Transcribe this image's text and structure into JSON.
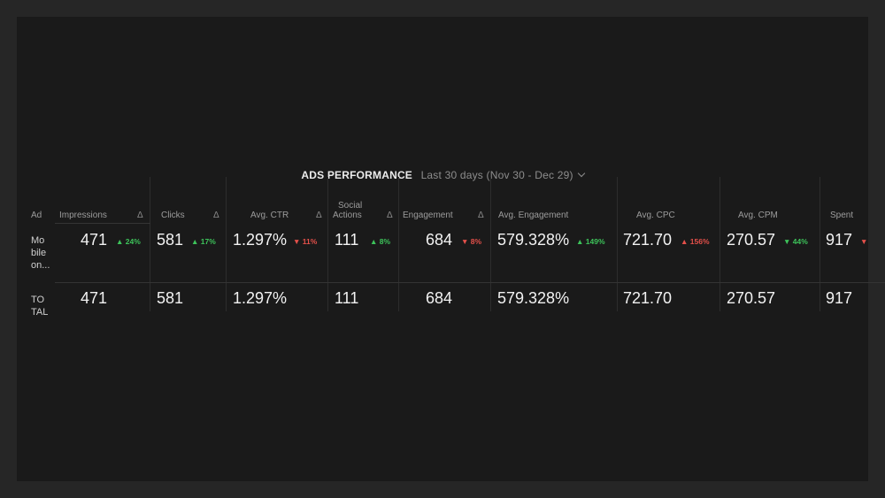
{
  "widget": {
    "title": "ADS PERFORMANCE",
    "date_range": "Last 30 days (Nov 30 - Dec 29)"
  },
  "columns": {
    "ad": "Ad",
    "impressions": "Impressions",
    "clicks": "Clicks",
    "avg_ctr": "Avg. CTR",
    "social_actions_1": "Social",
    "social_actions_2": "Actions",
    "engagement": "Engagement",
    "avg_engagement": "Avg. Engagement",
    "avg_cpc": "Avg. CPC",
    "avg_cpm": "Avg. CPM",
    "spent": "Spent",
    "delta": "Δ"
  },
  "rows": [
    {
      "ad_line1": "Mo",
      "ad_line2": "bile",
      "ad_line3": "on...",
      "impressions": "471",
      "impressions_chg": "▲ 24%",
      "clicks": "581",
      "clicks_chg": "▲ 17%",
      "avg_ctr": "1.297%",
      "avg_ctr_chg": "▼ 11%",
      "social_actions": "111",
      "social_actions_chg": "▲ 8%",
      "engagement": "684",
      "engagement_chg": "▼ 8%",
      "avg_engagement": "579.328%",
      "avg_engagement_chg": "▲ 149%",
      "avg_cpc": "721.70",
      "avg_cpc_chg": "▲ 156%",
      "avg_cpm": "270.57",
      "avg_cpm_chg": "▼ 44%",
      "spent": "917",
      "spent_chg": "▼"
    }
  ],
  "total": {
    "label_line1": "TO",
    "label_line2": "TAL",
    "impressions": "471",
    "clicks": "581",
    "avg_ctr": "1.297%",
    "social_actions": "111",
    "engagement": "684",
    "avg_engagement": "579.328%",
    "avg_cpc": "721.70",
    "avg_cpm": "270.57",
    "spent": "917"
  },
  "colors": {
    "positive": "#3dc35a",
    "negative": "#e5504a",
    "background": "#1a1a1a"
  }
}
